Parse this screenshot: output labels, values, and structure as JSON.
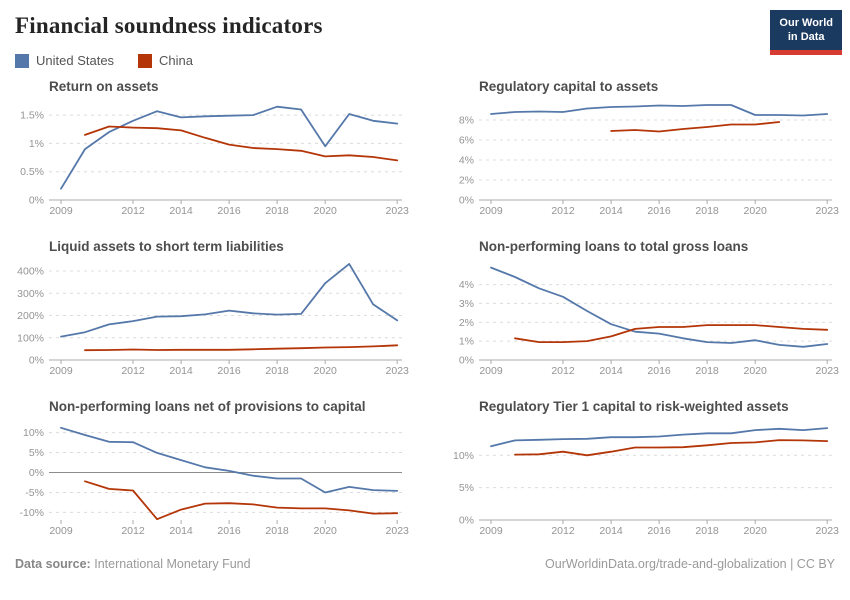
{
  "header": {
    "title": "Financial soundness indicators",
    "logo": {
      "line1": "Our World",
      "line2": "in Data"
    }
  },
  "legend": {
    "items": [
      {
        "label": "United States",
        "color": "#5578aa"
      },
      {
        "label": "China",
        "color": "#b43507"
      }
    ]
  },
  "footer": {
    "source_label": "Data source:",
    "source_value": "International Monetary Fund",
    "credit": "OurWorldinData.org/trade-and-globalization | CC BY"
  },
  "chart_data": [
    {
      "type": "line",
      "title": "Return on assets",
      "unit": "%",
      "xlim": [
        2008.5,
        2023.2
      ],
      "ylim": [
        0,
        1.75
      ],
      "grid": "dashed-horizontal",
      "xticks": [
        {
          "v": 2009,
          "label": "2009"
        },
        {
          "v": 2012,
          "label": "2012"
        },
        {
          "v": 2014,
          "label": "2014"
        },
        {
          "v": 2016,
          "label": "2016"
        },
        {
          "v": 2018,
          "label": "2018"
        },
        {
          "v": 2020,
          "label": "2020"
        },
        {
          "v": 2023,
          "label": "2023"
        }
      ],
      "yticks": [
        {
          "v": 0,
          "label": "0%"
        },
        {
          "v": 0.5,
          "label": "0.5%"
        },
        {
          "v": 1,
          "label": "1%"
        },
        {
          "v": 1.5,
          "label": "1.5%"
        }
      ],
      "series": [
        {
          "name": "United States",
          "color": "#5578aa",
          "start": 2009,
          "values": [
            0.2,
            0.9,
            1.2,
            1.4,
            1.57,
            1.46,
            1.48,
            1.49,
            1.5,
            1.65,
            1.6,
            0.95,
            1.52,
            1.4,
            1.35
          ]
        },
        {
          "name": "China",
          "color": "#b43507",
          "start": 2010,
          "values": [
            1.15,
            1.3,
            1.28,
            1.27,
            1.23,
            1.1,
            0.98,
            0.92,
            0.9,
            0.87,
            0.77,
            0.79,
            0.76,
            0.7
          ]
        }
      ]
    },
    {
      "type": "line",
      "title": "Regulatory capital to assets",
      "unit": "%",
      "xlim": [
        2008.5,
        2023.2
      ],
      "ylim": [
        0,
        9.9
      ],
      "grid": "dashed-horizontal",
      "xticks": [
        {
          "v": 2009,
          "label": "2009"
        },
        {
          "v": 2012,
          "label": "2012"
        },
        {
          "v": 2014,
          "label": "2014"
        },
        {
          "v": 2016,
          "label": "2016"
        },
        {
          "v": 2018,
          "label": "2018"
        },
        {
          "v": 2020,
          "label": "2020"
        },
        {
          "v": 2023,
          "label": "2023"
        }
      ],
      "yticks": [
        {
          "v": 0,
          "label": "0%"
        },
        {
          "v": 2,
          "label": "2%"
        },
        {
          "v": 4,
          "label": "4%"
        },
        {
          "v": 6,
          "label": "6%"
        },
        {
          "v": 8,
          "label": "8%"
        }
      ],
      "series": [
        {
          "name": "United States",
          "color": "#5578aa",
          "start": 2009,
          "values": [
            8.6,
            8.8,
            8.85,
            8.8,
            9.15,
            9.3,
            9.35,
            9.45,
            9.4,
            9.5,
            9.5,
            8.5,
            8.5,
            8.45,
            8.6
          ]
        },
        {
          "name": "China",
          "color": "#b43507",
          "start": 2014,
          "values": [
            6.9,
            7.0,
            6.85,
            7.1,
            7.3,
            7.55,
            7.55,
            7.8
          ]
        }
      ]
    },
    {
      "type": "line",
      "title": "Liquid assets to short term liabilities",
      "unit": "%",
      "xlim": [
        2008.5,
        2023.2
      ],
      "ylim": [
        0,
        445
      ],
      "grid": "dashed-horizontal",
      "xticks": [
        {
          "v": 2009,
          "label": "2009"
        },
        {
          "v": 2012,
          "label": "2012"
        },
        {
          "v": 2014,
          "label": "2014"
        },
        {
          "v": 2016,
          "label": "2016"
        },
        {
          "v": 2018,
          "label": "2018"
        },
        {
          "v": 2020,
          "label": "2020"
        },
        {
          "v": 2023,
          "label": "2023"
        }
      ],
      "yticks": [
        {
          "v": 0,
          "label": "0%"
        },
        {
          "v": 100,
          "label": "100%"
        },
        {
          "v": 200,
          "label": "200%"
        },
        {
          "v": 300,
          "label": "300%"
        },
        {
          "v": 400,
          "label": "400%"
        }
      ],
      "series": [
        {
          "name": "United States",
          "color": "#5578aa",
          "start": 2009,
          "values": [
            105,
            125,
            160,
            175,
            195,
            197,
            205,
            222,
            210,
            204,
            207,
            345,
            432,
            250,
            178
          ]
        },
        {
          "name": "China",
          "color": "#b43507",
          "start": 2010,
          "values": [
            44,
            45,
            47,
            45,
            46,
            46,
            46,
            48,
            51,
            53,
            56,
            58,
            61,
            66
          ]
        }
      ]
    },
    {
      "type": "line",
      "title": "Non-performing loans to total gross loans",
      "unit": "%",
      "xlim": [
        2008.5,
        2023.2
      ],
      "ylim": [
        0,
        5.25
      ],
      "grid": "dashed-horizontal",
      "xticks": [
        {
          "v": 2009,
          "label": "2009"
        },
        {
          "v": 2012,
          "label": "2012"
        },
        {
          "v": 2014,
          "label": "2014"
        },
        {
          "v": 2016,
          "label": "2016"
        },
        {
          "v": 2018,
          "label": "2018"
        },
        {
          "v": 2020,
          "label": "2020"
        },
        {
          "v": 2023,
          "label": "2023"
        }
      ],
      "yticks": [
        {
          "v": 0,
          "label": "0%"
        },
        {
          "v": 1,
          "label": "1%"
        },
        {
          "v": 2,
          "label": "2%"
        },
        {
          "v": 3,
          "label": "3%"
        },
        {
          "v": 4,
          "label": "4%"
        }
      ],
      "series": [
        {
          "name": "United States",
          "color": "#5578aa",
          "start": 2009,
          "values": [
            4.9,
            4.4,
            3.8,
            3.35,
            2.6,
            1.9,
            1.5,
            1.4,
            1.15,
            0.95,
            0.9,
            1.05,
            0.8,
            0.7,
            0.85
          ]
        },
        {
          "name": "China",
          "color": "#b43507",
          "start": 2010,
          "values": [
            1.15,
            0.95,
            0.95,
            1.0,
            1.25,
            1.65,
            1.75,
            1.75,
            1.85,
            1.85,
            1.85,
            1.75,
            1.65,
            1.6
          ]
        }
      ]
    },
    {
      "type": "line",
      "title": "Non-performing loans net of provisions to capital",
      "unit": "%",
      "xlim": [
        2008.5,
        2023.2
      ],
      "ylim": [
        -11.9,
        12.9
      ],
      "grid": "dashed-horizontal",
      "xticks": [
        {
          "v": 2009,
          "label": "2009"
        },
        {
          "v": 2012,
          "label": "2012"
        },
        {
          "v": 2014,
          "label": "2014"
        },
        {
          "v": 2016,
          "label": "2016"
        },
        {
          "v": 2018,
          "label": "2018"
        },
        {
          "v": 2020,
          "label": "2020"
        },
        {
          "v": 2023,
          "label": "2023"
        }
      ],
      "yticks": [
        {
          "v": -10,
          "label": "-10%"
        },
        {
          "v": -5,
          "label": "-5%"
        },
        {
          "v": 0,
          "label": "0%"
        },
        {
          "v": 5,
          "label": "5%"
        },
        {
          "v": 10,
          "label": "10%"
        }
      ],
      "series": [
        {
          "name": "United States",
          "color": "#5578aa",
          "start": 2009,
          "values": [
            11.2,
            9.4,
            7.7,
            7.6,
            4.9,
            3.1,
            1.3,
            0.4,
            -0.8,
            -1.5,
            -1.5,
            -5.0,
            -3.6,
            -4.4,
            -4.6
          ]
        },
        {
          "name": "China",
          "color": "#b43507",
          "start": 2010,
          "values": [
            -2.2,
            -4.1,
            -4.5,
            -11.7,
            -9.3,
            -7.8,
            -7.7,
            -8.0,
            -8.8,
            -9.0,
            -9.0,
            -9.5,
            -10.3,
            -10.2
          ]
        }
      ]
    },
    {
      "type": "line",
      "title": "Regulatory Tier 1 capital to risk-weighted assets",
      "unit": "%",
      "xlim": [
        2008.5,
        2023.2
      ],
      "ylim": [
        0,
        15.3
      ],
      "grid": "dashed-horizontal",
      "xticks": [
        {
          "v": 2009,
          "label": "2009"
        },
        {
          "v": 2012,
          "label": "2012"
        },
        {
          "v": 2014,
          "label": "2014"
        },
        {
          "v": 2016,
          "label": "2016"
        },
        {
          "v": 2018,
          "label": "2018"
        },
        {
          "v": 2020,
          "label": "2020"
        },
        {
          "v": 2023,
          "label": "2023"
        }
      ],
      "yticks": [
        {
          "v": 0,
          "label": "0%"
        },
        {
          "v": 5,
          "label": "5%"
        },
        {
          "v": 10,
          "label": "10%"
        }
      ],
      "series": [
        {
          "name": "United States",
          "color": "#5578aa",
          "start": 2009,
          "values": [
            11.4,
            12.3,
            12.4,
            12.5,
            12.55,
            12.8,
            12.8,
            12.9,
            13.2,
            13.4,
            13.4,
            13.9,
            14.1,
            13.9,
            14.2
          ]
        },
        {
          "name": "China",
          "color": "#b43507",
          "start": 2010,
          "values": [
            10.1,
            10.15,
            10.55,
            10.0,
            10.55,
            11.2,
            11.2,
            11.25,
            11.55,
            11.9,
            12.0,
            12.35,
            12.3,
            12.2
          ]
        }
      ]
    }
  ]
}
